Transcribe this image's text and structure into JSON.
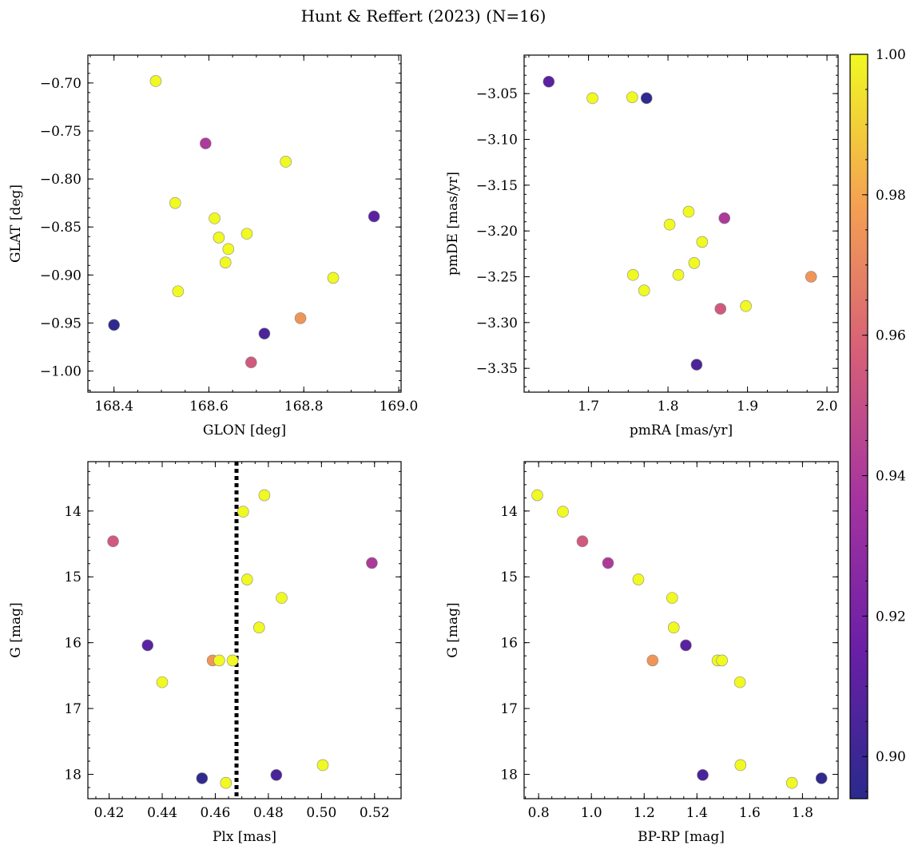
{
  "figure_title": "Hunt & Reffert (2023) (N=16)",
  "colorbar": {
    "min": 0.894,
    "max": 1.0,
    "ticks": [
      0.9,
      0.92,
      0.94,
      0.96,
      0.98,
      1.0
    ],
    "tick_labels": [
      "0.90",
      "0.92",
      "0.94",
      "0.96",
      "0.98",
      "1.00"
    ],
    "colormap": "plasma"
  },
  "chart_data": [
    {
      "type": "scatter",
      "xlabel": "GLON [deg]",
      "ylabel": "GLAT [deg]",
      "xlim": [
        168.345,
        169.005
      ],
      "ylim": [
        -1.022,
        -0.671
      ],
      "y_inverted": false,
      "xticks": [
        168.4,
        168.6,
        168.8,
        169.0
      ],
      "xtick_labels": [
        "168.4",
        "168.6",
        "168.8",
        "169.0"
      ],
      "yticks": [
        -0.7,
        -0.75,
        -0.8,
        -0.85,
        -0.9,
        -0.95,
        -1.0
      ],
      "ytick_labels": [
        "−0.70",
        "−0.75",
        "−0.80",
        "−0.85",
        "−0.90",
        "−0.95",
        "−1.00"
      ],
      "points": [
        {
          "x": 168.488,
          "y": -0.698,
          "c": 1.0
        },
        {
          "x": 168.593,
          "y": -0.763,
          "c": 0.94
        },
        {
          "x": 168.762,
          "y": -0.782,
          "c": 1.0
        },
        {
          "x": 168.529,
          "y": -0.825,
          "c": 1.0
        },
        {
          "x": 168.612,
          "y": -0.841,
          "c": 1.0
        },
        {
          "x": 168.948,
          "y": -0.839,
          "c": 0.91
        },
        {
          "x": 168.621,
          "y": -0.861,
          "c": 1.0
        },
        {
          "x": 168.68,
          "y": -0.857,
          "c": 1.0
        },
        {
          "x": 168.641,
          "y": -0.873,
          "c": 1.0
        },
        {
          "x": 168.635,
          "y": -0.887,
          "c": 1.0
        },
        {
          "x": 168.862,
          "y": -0.903,
          "c": 1.0
        },
        {
          "x": 168.535,
          "y": -0.917,
          "c": 1.0
        },
        {
          "x": 168.793,
          "y": -0.945,
          "c": 0.975
        },
        {
          "x": 168.4,
          "y": -0.952,
          "c": 0.896
        },
        {
          "x": 168.717,
          "y": -0.961,
          "c": 0.905
        },
        {
          "x": 168.689,
          "y": -0.991,
          "c": 0.955
        }
      ]
    },
    {
      "type": "scatter",
      "xlabel": "pmRA [mas/yr]",
      "ylabel": "pmDE [mas/yr]",
      "xlim": [
        1.619,
        2.014
      ],
      "ylim": [
        -3.376,
        -3.008
      ],
      "y_inverted": false,
      "xticks": [
        1.7,
        1.8,
        1.9,
        2.0
      ],
      "xtick_labels": [
        "1.7",
        "1.8",
        "1.9",
        "2.0"
      ],
      "yticks": [
        -3.05,
        -3.1,
        -3.15,
        -3.2,
        -3.25,
        -3.3,
        -3.35
      ],
      "ytick_labels": [
        "−3.05",
        "−3.10",
        "−3.15",
        "−3.20",
        "−3.25",
        "−3.30",
        "−3.35"
      ],
      "points": [
        {
          "x": 1.65,
          "y": -3.037,
          "c": 0.91
        },
        {
          "x": 1.705,
          "y": -3.055,
          "c": 1.0
        },
        {
          "x": 1.755,
          "y": -3.054,
          "c": 1.0
        },
        {
          "x": 1.773,
          "y": -3.055,
          "c": 0.896
        },
        {
          "x": 1.826,
          "y": -3.179,
          "c": 1.0
        },
        {
          "x": 1.871,
          "y": -3.186,
          "c": 0.94
        },
        {
          "x": 1.802,
          "y": -3.193,
          "c": 1.0
        },
        {
          "x": 1.843,
          "y": -3.212,
          "c": 1.0
        },
        {
          "x": 1.833,
          "y": -3.235,
          "c": 1.0
        },
        {
          "x": 1.756,
          "y": -3.248,
          "c": 1.0
        },
        {
          "x": 1.813,
          "y": -3.248,
          "c": 1.0
        },
        {
          "x": 1.98,
          "y": -3.25,
          "c": 0.975
        },
        {
          "x": 1.77,
          "y": -3.265,
          "c": 1.0
        },
        {
          "x": 1.898,
          "y": -3.282,
          "c": 1.0
        },
        {
          "x": 1.866,
          "y": -3.285,
          "c": 0.955
        },
        {
          "x": 1.836,
          "y": -3.346,
          "c": 0.905
        }
      ]
    },
    {
      "type": "scatter",
      "xlabel": "Plx [mas]",
      "ylabel": "G [mag]",
      "xlim": [
        0.412,
        0.53
      ],
      "ylim": [
        18.37,
        13.25
      ],
      "y_inverted": true,
      "xticks": [
        0.42,
        0.44,
        0.46,
        0.48,
        0.5,
        0.52
      ],
      "xtick_labels": [
        "0.42",
        "0.44",
        "0.46",
        "0.48",
        "0.50",
        "0.52"
      ],
      "yticks": [
        14,
        15,
        16,
        17,
        18
      ],
      "ytick_labels": [
        "14",
        "15",
        "16",
        "17",
        "18"
      ],
      "vline_x": 0.468,
      "points": [
        {
          "x": 0.4785,
          "y": 13.76,
          "c": 1.0
        },
        {
          "x": 0.4705,
          "y": 14.01,
          "c": 1.0
        },
        {
          "x": 0.4215,
          "y": 14.46,
          "c": 0.955
        },
        {
          "x": 0.519,
          "y": 14.79,
          "c": 0.94
        },
        {
          "x": 0.472,
          "y": 15.04,
          "c": 1.0
        },
        {
          "x": 0.485,
          "y": 15.32,
          "c": 1.0
        },
        {
          "x": 0.4765,
          "y": 15.77,
          "c": 1.0
        },
        {
          "x": 0.4345,
          "y": 16.04,
          "c": 0.91
        },
        {
          "x": 0.459,
          "y": 16.27,
          "c": 0.975
        },
        {
          "x": 0.4615,
          "y": 16.27,
          "c": 1.0
        },
        {
          "x": 0.4665,
          "y": 16.27,
          "c": 1.0
        },
        {
          "x": 0.44,
          "y": 16.6,
          "c": 1.0
        },
        {
          "x": 0.5005,
          "y": 17.86,
          "c": 1.0
        },
        {
          "x": 0.483,
          "y": 18.01,
          "c": 0.905
        },
        {
          "x": 0.455,
          "y": 18.06,
          "c": 0.896
        },
        {
          "x": 0.464,
          "y": 18.13,
          "c": 1.0
        }
      ]
    },
    {
      "type": "scatter",
      "xlabel": "BP-RP [mag]",
      "ylabel": "G [mag]",
      "xlim": [
        0.745,
        1.935
      ],
      "ylim": [
        18.37,
        13.25
      ],
      "y_inverted": true,
      "xticks": [
        0.8,
        1.0,
        1.2,
        1.4,
        1.6,
        1.8
      ],
      "xtick_labels": [
        "0.8",
        "1.0",
        "1.2",
        "1.4",
        "1.6",
        "1.8"
      ],
      "yticks": [
        14,
        15,
        16,
        17,
        18
      ],
      "ytick_labels": [
        "14",
        "15",
        "16",
        "17",
        "18"
      ],
      "points": [
        {
          "x": 0.795,
          "y": 13.76,
          "c": 1.0
        },
        {
          "x": 0.892,
          "y": 14.01,
          "c": 1.0
        },
        {
          "x": 0.966,
          "y": 14.46,
          "c": 0.955
        },
        {
          "x": 1.063,
          "y": 14.79,
          "c": 0.94
        },
        {
          "x": 1.178,
          "y": 15.04,
          "c": 1.0
        },
        {
          "x": 1.306,
          "y": 15.32,
          "c": 1.0
        },
        {
          "x": 1.312,
          "y": 15.77,
          "c": 1.0
        },
        {
          "x": 1.358,
          "y": 16.04,
          "c": 0.91
        },
        {
          "x": 1.232,
          "y": 16.27,
          "c": 0.975
        },
        {
          "x": 1.478,
          "y": 16.27,
          "c": 1.0
        },
        {
          "x": 1.495,
          "y": 16.27,
          "c": 1.0
        },
        {
          "x": 1.563,
          "y": 16.6,
          "c": 1.0
        },
        {
          "x": 1.565,
          "y": 17.86,
          "c": 1.0
        },
        {
          "x": 1.422,
          "y": 18.01,
          "c": 0.905
        },
        {
          "x": 1.872,
          "y": 18.06,
          "c": 0.896
        },
        {
          "x": 1.76,
          "y": 18.13,
          "c": 1.0
        }
      ]
    }
  ]
}
